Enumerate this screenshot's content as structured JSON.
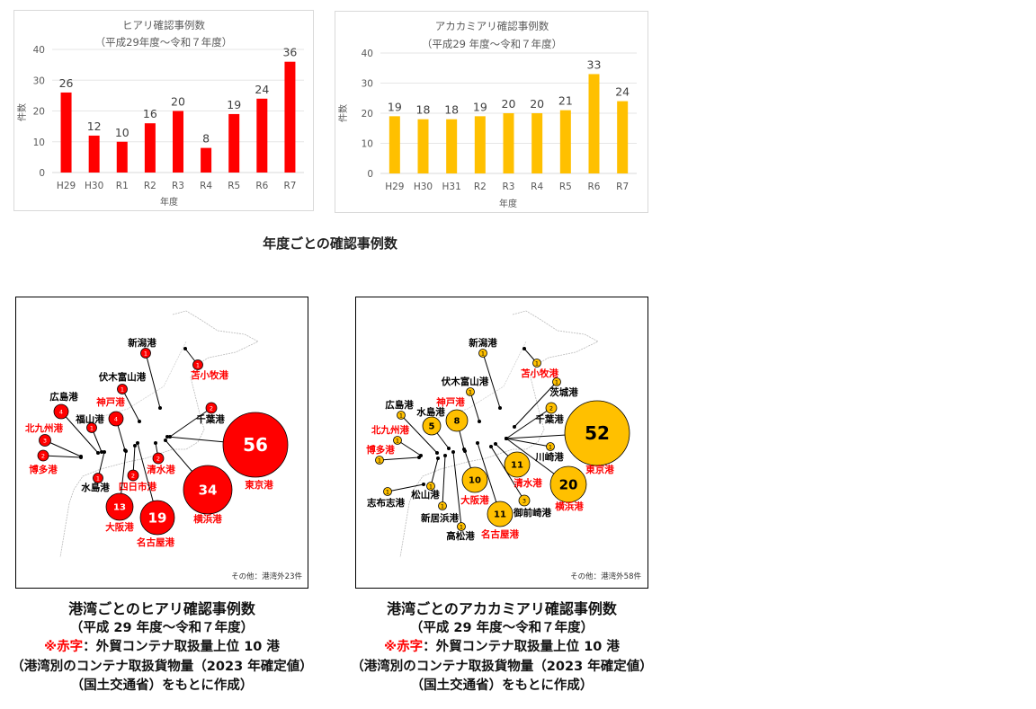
{
  "chart_data": [
    {
      "type": "bar",
      "title": "ヒアリ確認事例数",
      "subtitle": "（平成29年度～令和７年度）",
      "categories": [
        "H29",
        "H30",
        "R1",
        "R2",
        "R3",
        "R4",
        "R5",
        "R6",
        "R7"
      ],
      "values": [
        26,
        12,
        10,
        16,
        20,
        8,
        19,
        24,
        36
      ],
      "xlabel": "年度",
      "ylabel": "件数",
      "ylim": [
        0,
        40
      ],
      "yticks": [
        0,
        10,
        20,
        30,
        40
      ],
      "color": "#ff0000",
      "grid": true
    },
    {
      "type": "bar",
      "title": "アカカミアリ確認事例数",
      "subtitle": "（平成29 年度～令和７年度）",
      "categories": [
        "H29",
        "H30",
        "H31",
        "R2",
        "R3",
        "R4",
        "R5",
        "R6",
        "R7"
      ],
      "values": [
        19,
        18,
        18,
        19,
        20,
        20,
        21,
        33,
        24
      ],
      "xlabel": "年度",
      "ylabel": "件数",
      "ylim": [
        0,
        40
      ],
      "yticks": [
        0,
        10,
        20,
        30,
        40
      ],
      "color": "#ffc000",
      "grid": true
    }
  ],
  "section_title": "年度ごとの確認事例数",
  "maps": [
    {
      "color": "#ff0000",
      "text_color": "#ffffff",
      "note": "その他：港湾外23件",
      "ports": [
        {
          "name": "新潟港",
          "count": 1,
          "top10": false
        },
        {
          "name": "苫小牧港",
          "count": 1,
          "top10": true
        },
        {
          "name": "伏木富山港",
          "count": 1,
          "top10": false
        },
        {
          "name": "広島港",
          "count": 4,
          "top10": false
        },
        {
          "name": "神戸港",
          "count": 4,
          "top10": true
        },
        {
          "name": "福山港",
          "count": 1,
          "top10": false
        },
        {
          "name": "北九州港",
          "count": 3,
          "top10": true
        },
        {
          "name": "博多港",
          "count": 2,
          "top10": true
        },
        {
          "name": "水島港",
          "count": 1,
          "top10": false
        },
        {
          "name": "四日市港",
          "count": 2,
          "top10": true
        },
        {
          "name": "清水港",
          "count": 2,
          "top10": true
        },
        {
          "name": "千葉港",
          "count": 2,
          "top10": false
        },
        {
          "name": "東京港",
          "count": 56,
          "top10": true
        },
        {
          "name": "横浜港",
          "count": 34,
          "top10": true
        },
        {
          "name": "大阪港",
          "count": 13,
          "top10": true
        },
        {
          "name": "名古屋港",
          "count": 19,
          "top10": true
        }
      ],
      "caption": {
        "line1": "港湾ごとのヒアリ確認事例数",
        "line2": "（平成 29 年度～令和７年度）",
        "line3_red": "※赤字",
        "line3_rest": "：外貿コンテナ取扱量上位 10 港",
        "line4": "（港湾別のコンテナ取扱貨物量（2023 年確定値）",
        "line5": "（国土交通省）をもとに作成）"
      }
    },
    {
      "color": "#ffc000",
      "text_color": "#000000",
      "note": "その他：港湾外58件",
      "ports": [
        {
          "name": "新潟港",
          "count": 1,
          "top10": false
        },
        {
          "name": "苫小牧港",
          "count": 1,
          "top10": true
        },
        {
          "name": "茨城港",
          "count": 1,
          "top10": false
        },
        {
          "name": "伏木富山港",
          "count": 1,
          "top10": false
        },
        {
          "name": "広島港",
          "count": 1,
          "top10": false
        },
        {
          "name": "水島港",
          "count": 5,
          "top10": false
        },
        {
          "name": "神戸港",
          "count": 8,
          "top10": true
        },
        {
          "name": "北九州港",
          "count": 1,
          "top10": true
        },
        {
          "name": "博多港",
          "count": 1,
          "top10": true
        },
        {
          "name": "志布志港",
          "count": 1,
          "top10": false
        },
        {
          "name": "松山港",
          "count": 1,
          "top10": false
        },
        {
          "name": "新居浜港",
          "count": 1,
          "top10": false
        },
        {
          "name": "高松港",
          "count": 1,
          "top10": false
        },
        {
          "name": "大阪港",
          "count": 10,
          "top10": true
        },
        {
          "name": "名古屋港",
          "count": 11,
          "top10": true
        },
        {
          "name": "御前崎港",
          "count": 3,
          "top10": false
        },
        {
          "name": "清水港",
          "count": 11,
          "top10": true
        },
        {
          "name": "川崎港",
          "count": 1,
          "top10": false
        },
        {
          "name": "千葉港",
          "count": 2,
          "top10": false
        },
        {
          "name": "東京港",
          "count": 52,
          "top10": true
        },
        {
          "name": "横浜港",
          "count": 20,
          "top10": true
        }
      ],
      "caption": {
        "line1": "港湾ごとのアカカミアリ確認事例数",
        "line2": "（平成 29 年度～令和７年度）",
        "line3_red": "※赤字",
        "line3_rest": "：外貿コンテナ取扱量上位 10 港",
        "line4": "（港湾別のコンテナ取扱貨物量（2023 年確定値）",
        "line5": "（国土交通省）をもとに作成）"
      }
    }
  ]
}
